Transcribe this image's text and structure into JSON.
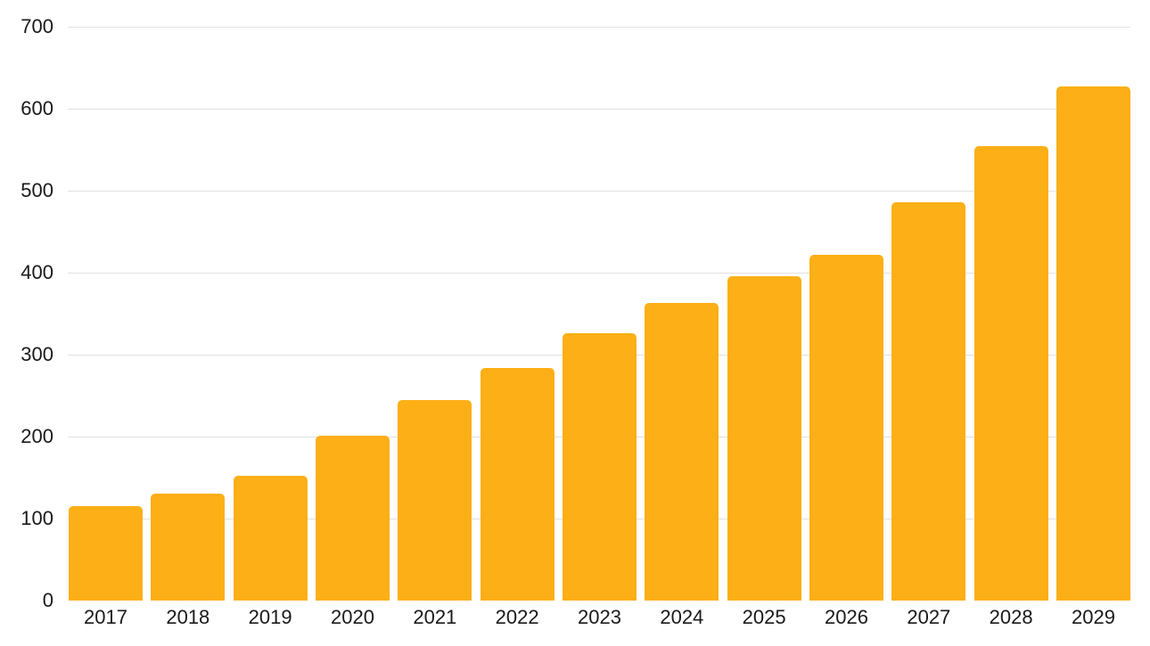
{
  "chart_data": {
    "type": "bar",
    "title": "",
    "xlabel": "",
    "ylabel": "",
    "categories": [
      "2017",
      "2018",
      "2019",
      "2020",
      "2021",
      "2022",
      "2023",
      "2024",
      "2025",
      "2026",
      "2027",
      "2028",
      "2029"
    ],
    "values": [
      115,
      130,
      152,
      201,
      245,
      284,
      326,
      363,
      396,
      422,
      486,
      554,
      627
    ],
    "ylim": [
      0,
      700
    ],
    "y_ticks": [
      0,
      100,
      200,
      300,
      400,
      500,
      600,
      700
    ],
    "grid": true,
    "legend": false,
    "colors": {
      "bar": "#FCAF16",
      "gridline": "#E0E0E0",
      "tick_label": "#1A1A1A",
      "background": "#FFFFFF"
    }
  }
}
